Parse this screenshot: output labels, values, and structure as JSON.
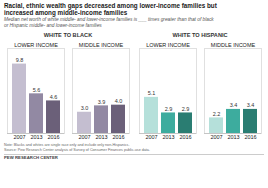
{
  "title": "Racial, ethnic wealth gaps decreased among lower-income families but\nincreased among middle-income families",
  "subtitle": "Median net worth of white middle- and lower-income families is ___ times greater than that of black\nor Hispanic middle- and lower-income families",
  "annotations": [
    "Note: Blacks and whites are single race only and include only non-Hispanics.\nSource: Pew Research Center analysis of Survey of Consumer Finances public-use data.",
    "PEW RESEARCH CENTER"
  ],
  "chart_data": [
    {
      "type": "bar",
      "title": "WHITE TO BLACK",
      "categories": [
        "2007",
        "2013",
        "2016"
      ],
      "series": [
        {
          "name": "LOWER INCOME",
          "values": [
            9.8,
            5.6,
            4.6
          ],
          "value_labels": [
            "9.8",
            "5.6",
            "4.6"
          ],
          "colors": [
            "#c4bed0",
            "#9289a3",
            "#6b6079"
          ]
        },
        {
          "name": "MIDDLE INCOME",
          "values": [
            3.0,
            3.9,
            4.0
          ],
          "value_labels": [
            "3.0",
            "3.9",
            "4.0"
          ],
          "colors": [
            "#c4bed0",
            "#9289a3",
            "#6b6079"
          ]
        }
      ],
      "ylim": [
        0,
        12.0
      ],
      "data_labels": true,
      "tick_labels": "x",
      "grid": false
    },
    {
      "type": "bar",
      "title": "WHITE TO HISPANIC",
      "categories": [
        "2007",
        "2013",
        "2016"
      ],
      "series": [
        {
          "name": "LOWER INCOME",
          "values": [
            5.1,
            2.9,
            2.9
          ],
          "value_labels": [
            "5.1",
            "2.9",
            "2.9"
          ],
          "colors": [
            "#b5e0da",
            "#3dac9e",
            "#2a7d72"
          ]
        },
        {
          "name": "MIDDLE INCOME",
          "values": [
            2.2,
            3.4,
            3.4
          ],
          "value_labels": [
            "2.2",
            "3.4",
            "3.4"
          ],
          "colors": [
            "#b5e0da",
            "#3dac9e",
            "#2a7d72"
          ]
        }
      ],
      "ylim": [
        0,
        12.0
      ],
      "data_labels": true,
      "tick_labels": "x",
      "grid": false
    }
  ]
}
